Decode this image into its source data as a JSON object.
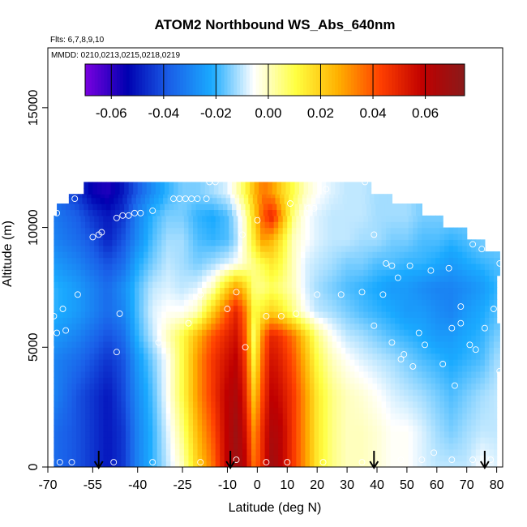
{
  "chart_data": {
    "type": "heatmap",
    "title": "ATOM2 Northbound WS_Abs_640nm",
    "flights_label": "Flts: 6,7,8,9,10",
    "dates_label": "MMDD: 0210,0213,0215,0218,0219",
    "xlabel": "Latitude (deg N)",
    "ylabel": "Altitude (m)",
    "xlim": [
      -70,
      82
    ],
    "ylim": [
      0,
      17500
    ],
    "x_ticks": [
      -70,
      -55,
      -40,
      -25,
      -10,
      0,
      10,
      20,
      30,
      40,
      50,
      60,
      70,
      80
    ],
    "x_tick_labels": [
      "-70",
      "-55",
      "-40",
      "-25",
      "-10",
      "0",
      "10",
      "20",
      "30",
      "40",
      "50",
      "60",
      "70",
      "80"
    ],
    "y_ticks": [
      0,
      5000,
      10000,
      15000
    ],
    "y_tick_labels": [
      "0",
      "5000",
      "10000",
      "15000"
    ],
    "colorbar": {
      "range": [
        -0.07,
        0.075
      ],
      "ticks": [
        -0.06,
        -0.04,
        -0.02,
        0.0,
        0.02,
        0.04,
        0.06
      ],
      "tick_labels": [
        "-0.06",
        "-0.04",
        "-0.02",
        "0.00",
        "0.02",
        "0.04",
        "0.06"
      ],
      "colors": [
        "#7a00e0",
        "#0000b0",
        "#1a5fe8",
        "#1aaaff",
        "#ffffff",
        "#ffff40",
        "#ffb000",
        "#ff4000",
        "#c00000",
        "#8a1a1a"
      ]
    },
    "lat_nodes": [
      -68,
      -60,
      -55,
      -50,
      -45,
      -40,
      -35,
      -30,
      -25,
      -20,
      -15,
      -10,
      -7,
      -4,
      -1,
      2,
      5,
      8,
      12,
      16,
      20,
      25,
      30,
      35,
      40,
      45,
      50,
      55,
      60,
      65,
      70,
      75,
      80
    ],
    "alt_nodes": [
      0,
      1500,
      3000,
      4500,
      5500,
      6500,
      7500,
      8500,
      9500,
      10500,
      11500
    ],
    "values": [
      [
        -0.035,
        -0.04,
        -0.045,
        -0.05,
        -0.045,
        -0.03,
        -0.02,
        -0.01,
        0.0,
        0.02,
        0.035,
        0.06,
        0.07,
        0.06,
        0.035,
        0.05,
        0.07,
        0.06,
        0.045,
        0.03,
        0.015,
        0.005,
        0.0,
        0.0,
        -0.002,
        -0.005,
        -0.005,
        -0.008,
        -0.01,
        -0.01,
        -0.01,
        -0.005,
        -0.008
      ],
      [
        -0.035,
        -0.04,
        -0.045,
        -0.05,
        -0.045,
        -0.03,
        -0.02,
        -0.008,
        0.005,
        0.025,
        0.04,
        0.06,
        0.07,
        0.055,
        0.03,
        0.05,
        0.065,
        0.06,
        0.045,
        0.03,
        0.015,
        0.005,
        0.0,
        0.0,
        -0.002,
        -0.005,
        -0.005,
        -0.008,
        -0.012,
        -0.015,
        -0.012,
        -0.01,
        -0.01
      ],
      [
        -0.03,
        -0.04,
        -0.045,
        -0.05,
        -0.042,
        -0.028,
        -0.018,
        -0.005,
        0.01,
        0.03,
        0.045,
        0.06,
        0.065,
        0.05,
        0.02,
        0.045,
        0.06,
        0.055,
        0.045,
        0.03,
        0.015,
        0.005,
        0.0,
        -0.002,
        -0.005,
        -0.008,
        -0.01,
        -0.012,
        -0.015,
        -0.018,
        -0.015,
        -0.012,
        -0.01
      ],
      [
        -0.03,
        -0.035,
        -0.04,
        -0.045,
        -0.04,
        -0.025,
        -0.015,
        -0.005,
        0.01,
        0.03,
        0.045,
        0.055,
        0.06,
        0.045,
        0.01,
        0.04,
        0.055,
        0.05,
        0.04,
        0.025,
        0.01,
        0.0,
        -0.005,
        -0.008,
        -0.01,
        -0.012,
        -0.015,
        -0.018,
        -0.02,
        -0.022,
        -0.02,
        -0.018,
        -0.012
      ],
      [
        -0.025,
        -0.03,
        -0.035,
        -0.04,
        -0.035,
        -0.02,
        -0.01,
        0.0,
        0.01,
        0.025,
        0.04,
        0.05,
        0.055,
        0.04,
        0.005,
        0.035,
        0.05,
        0.045,
        0.035,
        0.02,
        0.005,
        -0.005,
        -0.01,
        -0.012,
        -0.015,
        -0.018,
        -0.02,
        -0.022,
        -0.025,
        -0.025,
        -0.022,
        -0.02,
        -0.015
      ],
      [
        -0.02,
        -0.025,
        -0.03,
        -0.035,
        -0.03,
        -0.018,
        -0.008,
        -0.005,
        -0.005,
        0.0,
        0.02,
        0.04,
        0.05,
        0.035,
        0.01,
        0.015,
        0.02,
        0.015,
        0.005,
        -0.005,
        -0.01,
        -0.012,
        -0.015,
        -0.018,
        -0.02,
        -0.022,
        -0.025,
        -0.025,
        -0.028,
        -0.03,
        -0.025,
        -0.022,
        -0.018
      ],
      [
        -0.02,
        -0.025,
        -0.03,
        -0.035,
        -0.028,
        -0.018,
        -0.01,
        -0.008,
        -0.01,
        -0.008,
        0.0,
        0.02,
        0.03,
        0.02,
        0.005,
        0.005,
        0.008,
        0.005,
        0.0,
        -0.008,
        -0.012,
        -0.015,
        -0.018,
        -0.02,
        -0.022,
        -0.025,
        -0.025,
        -0.028,
        -0.03,
        -0.03,
        -0.028,
        -0.025,
        -0.02
      ],
      [
        -0.025,
        -0.03,
        -0.035,
        -0.04,
        -0.035,
        -0.022,
        -0.015,
        -0.01,
        -0.012,
        -0.015,
        -0.012,
        -0.008,
        -0.005,
        0.0,
        0.005,
        0.01,
        0.015,
        0.01,
        0.0,
        -0.008,
        -0.01,
        -0.012,
        -0.015,
        -0.015,
        -0.018,
        -0.018,
        -0.02,
        -0.02,
        -0.022,
        -0.025,
        -0.022,
        -0.02,
        -0.018
      ],
      [
        -0.03,
        -0.035,
        -0.04,
        -0.048,
        -0.04,
        -0.028,
        -0.018,
        -0.012,
        -0.012,
        -0.018,
        -0.02,
        -0.018,
        -0.012,
        0.0,
        0.015,
        0.03,
        0.025,
        0.015,
        0.0,
        -0.005,
        -0.008,
        -0.01,
        -0.01,
        -0.012,
        -0.012,
        -0.015,
        -0.015,
        -0.018,
        -0.018,
        -0.02,
        -0.018,
        -0.015,
        -0.015
      ],
      [
        -0.032,
        -0.038,
        -0.045,
        -0.05,
        -0.045,
        -0.03,
        -0.02,
        -0.015,
        -0.015,
        -0.02,
        -0.022,
        -0.018,
        -0.01,
        0.0,
        0.02,
        0.04,
        0.05,
        0.03,
        0.005,
        -0.005,
        -0.008,
        -0.01,
        -0.01,
        -0.01,
        -0.012,
        -0.012,
        -0.012,
        -0.015,
        -0.015,
        -0.015,
        -0.015,
        -0.012,
        -0.012
      ],
      [
        -0.035,
        -0.045,
        -0.055,
        -0.058,
        -0.05,
        -0.038,
        -0.028,
        -0.02,
        -0.015,
        -0.015,
        -0.012,
        -0.008,
        0.0,
        0.01,
        0.025,
        0.035,
        0.03,
        0.02,
        0.01,
        0.0,
        -0.005,
        -0.008,
        -0.01,
        -0.01,
        -0.012,
        -0.012,
        -0.012,
        -0.015,
        -0.015,
        -0.015,
        -0.015,
        -0.012,
        -0.012
      ]
    ],
    "coverage": [
      {
        "alt": [
          0,
          4000
        ],
        "lat": [
          -68,
          80
        ]
      },
      {
        "alt": [
          4000,
          6000
        ],
        "lat": [
          -68,
          81
        ]
      },
      {
        "alt": [
          6000,
          8000
        ],
        "lat": [
          -68,
          80
        ]
      },
      {
        "alt": [
          8000,
          9000
        ],
        "lat": [
          -68,
          81
        ]
      },
      {
        "alt": [
          9000,
          9500
        ],
        "lat": [
          -68,
          76
        ]
      },
      {
        "alt": [
          9500,
          10000
        ],
        "lat": [
          -68,
          70
        ]
      },
      {
        "alt": [
          10000,
          10500
        ],
        "lat": [
          -68,
          62
        ]
      },
      {
        "alt": [
          10500,
          11000
        ],
        "lat": [
          -67,
          55
        ]
      },
      {
        "alt": [
          11000,
          11400
        ],
        "lat": [
          -63,
          45
        ]
      },
      {
        "alt": [
          11400,
          11900
        ],
        "lat": [
          -58,
          38
        ]
      }
    ],
    "markers": [
      {
        "lat": -69,
        "alt": 300
      },
      {
        "lat": -66,
        "alt": 200
      },
      {
        "lat": -62,
        "alt": 200
      },
      {
        "lat": -48,
        "alt": 200
      },
      {
        "lat": -35,
        "alt": 200
      },
      {
        "lat": -19,
        "alt": 200
      },
      {
        "lat": -7,
        "alt": 300
      },
      {
        "lat": 3,
        "alt": 200
      },
      {
        "lat": 10,
        "alt": 200
      },
      {
        "lat": 22,
        "alt": 200
      },
      {
        "lat": 35,
        "alt": 200
      },
      {
        "lat": 48,
        "alt": 300
      },
      {
        "lat": 55,
        "alt": 300
      },
      {
        "lat": 59,
        "alt": 600
      },
      {
        "lat": 65,
        "alt": 300
      },
      {
        "lat": 72,
        "alt": 300
      },
      {
        "lat": 78,
        "alt": 300
      },
      {
        "lat": -69,
        "alt": 5000
      },
      {
        "lat": -67,
        "alt": 5600
      },
      {
        "lat": -64,
        "alt": 5700
      },
      {
        "lat": -68,
        "alt": 6300
      },
      {
        "lat": -65,
        "alt": 6600
      },
      {
        "lat": -60,
        "alt": 7200
      },
      {
        "lat": -46,
        "alt": 6400
      },
      {
        "lat": -47,
        "alt": 4800
      },
      {
        "lat": -33,
        "alt": 5200
      },
      {
        "lat": -23,
        "alt": 6000
      },
      {
        "lat": -19,
        "alt": 7200
      },
      {
        "lat": -10,
        "alt": 6600
      },
      {
        "lat": -7,
        "alt": 7300
      },
      {
        "lat": -4,
        "alt": 5000
      },
      {
        "lat": 3,
        "alt": 6300
      },
      {
        "lat": 8,
        "alt": 6300
      },
      {
        "lat": 13,
        "alt": 6400
      },
      {
        "lat": 20,
        "alt": 7200
      },
      {
        "lat": 28,
        "alt": 7200
      },
      {
        "lat": 35,
        "alt": 7300
      },
      {
        "lat": 39,
        "alt": 5900
      },
      {
        "lat": 42,
        "alt": 7200
      },
      {
        "lat": 45,
        "alt": 5200
      },
      {
        "lat": 48,
        "alt": 4500
      },
      {
        "lat": 49,
        "alt": 4700
      },
      {
        "lat": 52,
        "alt": 4200
      },
      {
        "lat": 54,
        "alt": 5600
      },
      {
        "lat": 56,
        "alt": 5100
      },
      {
        "lat": 62,
        "alt": 4300
      },
      {
        "lat": 65,
        "alt": 5800
      },
      {
        "lat": 68,
        "alt": 6000
      },
      {
        "lat": 68,
        "alt": 6700
      },
      {
        "lat": 71,
        "alt": 5100
      },
      {
        "lat": 73,
        "alt": 4900
      },
      {
        "lat": 76,
        "alt": 5800
      },
      {
        "lat": 79,
        "alt": 6600
      },
      {
        "lat": 81,
        "alt": 4000
      },
      {
        "lat": 66,
        "alt": 3400
      },
      {
        "lat": 47,
        "alt": 7900
      },
      {
        "lat": 43,
        "alt": 8500
      },
      {
        "lat": 45,
        "alt": 8400
      },
      {
        "lat": 51,
        "alt": 8400
      },
      {
        "lat": 58,
        "alt": 8200
      },
      {
        "lat": 64,
        "alt": 8300
      },
      {
        "lat": 75,
        "alt": 9100
      },
      {
        "lat": 81,
        "alt": 8500
      },
      {
        "lat": 72,
        "alt": 9300
      },
      {
        "lat": 39,
        "alt": 9700
      },
      {
        "lat": -55,
        "alt": 9600
      },
      {
        "lat": -53,
        "alt": 9700
      },
      {
        "lat": -52,
        "alt": 9800
      },
      {
        "lat": -47,
        "alt": 10400
      },
      {
        "lat": -45,
        "alt": 10500
      },
      {
        "lat": -43,
        "alt": 10500
      },
      {
        "lat": -41,
        "alt": 10600
      },
      {
        "lat": -39,
        "alt": 10600
      },
      {
        "lat": -35,
        "alt": 10700
      },
      {
        "lat": -70,
        "alt": 10000
      },
      {
        "lat": -67,
        "alt": 10600
      },
      {
        "lat": -61,
        "alt": 11200
      },
      {
        "lat": -28,
        "alt": 11200
      },
      {
        "lat": -26,
        "alt": 11200
      },
      {
        "lat": -24,
        "alt": 11200
      },
      {
        "lat": -22,
        "alt": 11200
      },
      {
        "lat": -20,
        "alt": 11200
      },
      {
        "lat": -17,
        "alt": 11200
      },
      {
        "lat": -60,
        "alt": 11900
      },
      {
        "lat": -16,
        "alt": 11900
      },
      {
        "lat": -14,
        "alt": 11900
      },
      {
        "lat": -5,
        "alt": 9700
      },
      {
        "lat": 0,
        "alt": 10300
      },
      {
        "lat": 11,
        "alt": 11000
      },
      {
        "lat": 17,
        "alt": 10800
      },
      {
        "lat": 19,
        "alt": 10800
      },
      {
        "lat": 36,
        "alt": 11900
      },
      {
        "lat": 23,
        "alt": 11600
      }
    ],
    "arrows_lat": [
      -53,
      -9,
      39,
      76
    ]
  }
}
